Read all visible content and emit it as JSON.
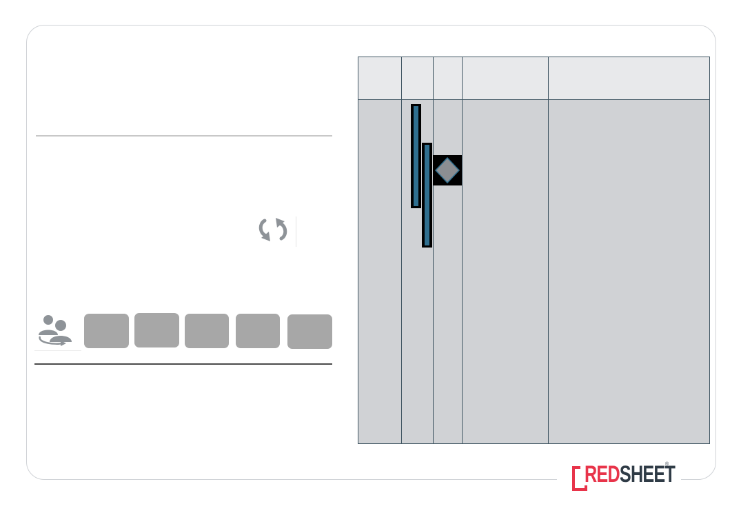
{
  "logo": {
    "part1": "RED",
    "part2": "SHEET",
    "registered": "®",
    "brand_red": "#e8344a",
    "brand_dark": "#2f3b46"
  },
  "icons": {
    "sync": "sync-icon",
    "users": "users-icon",
    "milestone": "diamond-milestone-icon"
  },
  "toolbar": {
    "buttons": [
      {
        "label": ""
      },
      {
        "label": ""
      },
      {
        "label": ""
      },
      {
        "label": ""
      },
      {
        "label": ""
      }
    ],
    "button_color": "#a7a7a7"
  },
  "gantt": {
    "header_color": "#e8e9eb",
    "body_color": "#d0d2d5",
    "grid_color": "#3f5562",
    "bar_color": "#2f6f8f",
    "columns": [
      "",
      "",
      "",
      "",
      ""
    ],
    "tasks": [
      {
        "name": ""
      },
      {
        "name": ""
      }
    ],
    "milestones": [
      {
        "name": ""
      }
    ]
  }
}
